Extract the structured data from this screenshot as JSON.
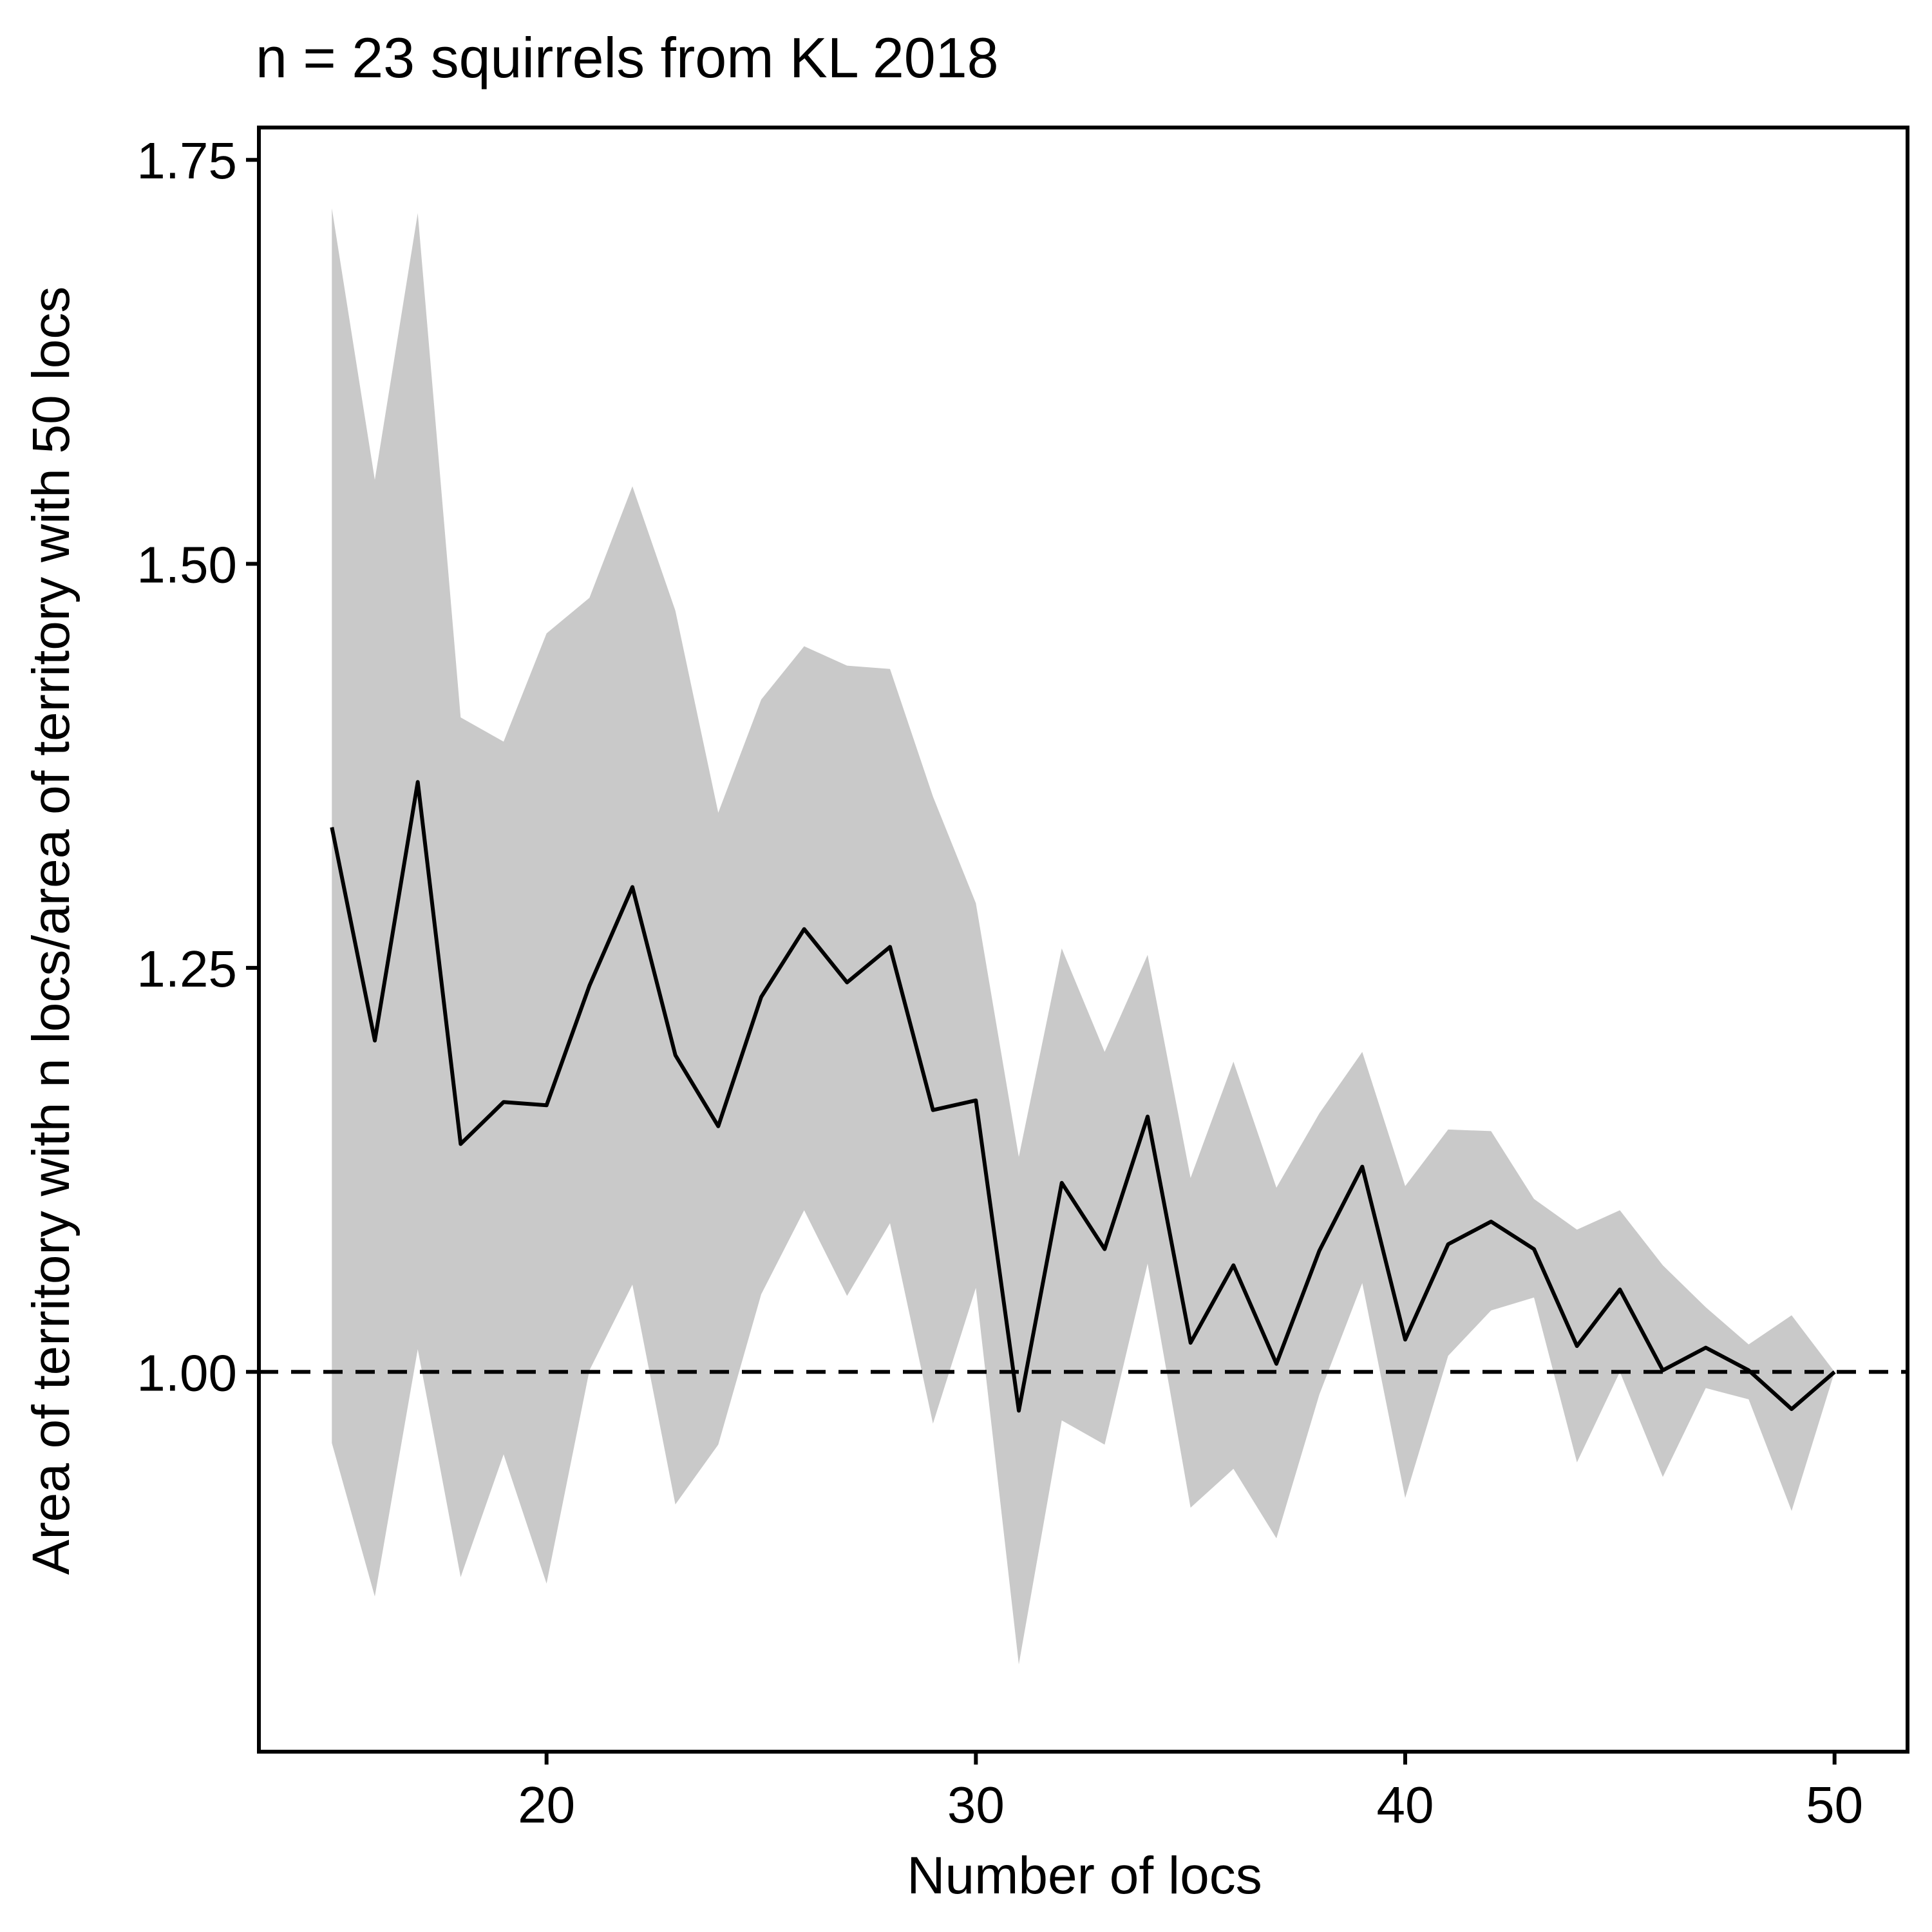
{
  "chart_data": {
    "type": "line",
    "title": "n = 23 squirrels from KL 2018",
    "xlabel": "Number of locs",
    "ylabel": "Area of territory with n locs/area of territory with 50 locs",
    "xlim": [
      13.3,
      51.7
    ],
    "ylim": [
      0.765,
      1.77
    ],
    "xticks": [
      20,
      30,
      40,
      50
    ],
    "xtick_labels": [
      "20",
      "30",
      "40",
      "50"
    ],
    "yticks": [
      1.0,
      1.25,
      1.5,
      1.75
    ],
    "ytick_labels": [
      "1.00",
      "1.25",
      "1.50",
      "1.75"
    ],
    "reference_line": {
      "y": 1.0,
      "style": "dashed"
    },
    "grid": false,
    "series": [
      {
        "type": "line",
        "color": "#000000",
        "x": [
          15,
          16,
          17,
          18,
          19,
          20,
          21,
          22,
          23,
          24,
          25,
          26,
          27,
          28,
          29,
          30,
          31,
          32,
          33,
          34,
          35,
          36,
          37,
          38,
          39,
          40,
          41,
          42,
          43,
          44,
          45,
          46,
          47,
          48,
          49,
          50
        ],
        "y": [
          1.337,
          1.205,
          1.365,
          1.141,
          1.167,
          1.165,
          1.239,
          1.3,
          1.196,
          1.152,
          1.232,
          1.274,
          1.241,
          1.263,
          1.162,
          1.168,
          0.976,
          1.117,
          1.076,
          1.158,
          1.018,
          1.066,
          1.005,
          1.075,
          1.127,
          1.02,
          1.079,
          1.093,
          1.076,
          1.016,
          1.051,
          1.001,
          1.015,
          1.001,
          0.977,
          1.0
        ]
      },
      {
        "type": "band",
        "color": "#c9c9c9",
        "x": [
          15,
          16,
          17,
          18,
          19,
          20,
          21,
          22,
          23,
          24,
          25,
          26,
          27,
          28,
          29,
          30,
          31,
          32,
          33,
          34,
          35,
          36,
          37,
          38,
          39,
          40,
          41,
          42,
          43,
          44,
          45,
          46,
          47,
          48,
          49,
          50
        ],
        "upper": [
          1.72,
          1.552,
          1.717,
          1.405,
          1.39,
          1.457,
          1.479,
          1.548,
          1.471,
          1.346,
          1.416,
          1.449,
          1.437,
          1.435,
          1.356,
          1.29,
          1.133,
          1.262,
          1.198,
          1.258,
          1.12,
          1.192,
          1.114,
          1.16,
          1.198,
          1.115,
          1.15,
          1.149,
          1.107,
          1.088,
          1.1,
          1.066,
          1.04,
          1.017,
          1.035,
          1.0
        ],
        "lower": [
          0.956,
          0.861,
          1.014,
          0.873,
          0.949,
          0.869,
          1.001,
          1.054,
          0.918,
          0.955,
          1.048,
          1.1,
          1.047,
          1.092,
          0.968,
          1.052,
          0.819,
          0.97,
          0.955,
          1.067,
          0.916,
          0.94,
          0.897,
          0.986,
          1.055,
          0.922,
          1.01,
          1.038,
          1.046,
          0.944,
          1.0,
          0.935,
          0.99,
          0.983,
          0.914,
          1.0
        ]
      }
    ]
  }
}
